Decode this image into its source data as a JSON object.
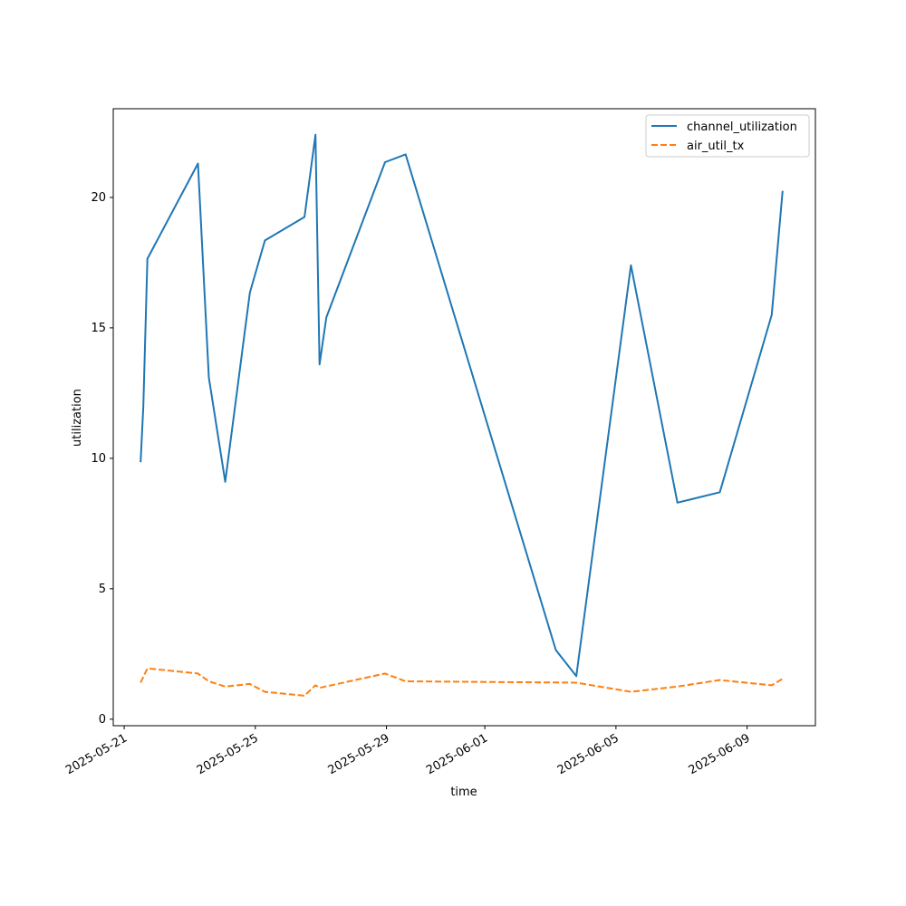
{
  "chart_data": {
    "type": "line",
    "xlabel": "time",
    "ylabel": "utilization",
    "x_axis_kind": "date",
    "xlim": [
      "2025-05-20T16:00",
      "2025-06-11T02:00"
    ],
    "ylim": [
      -0.25,
      23.4
    ],
    "x_ticks": [
      "2025-05-21",
      "2025-05-25",
      "2025-05-29",
      "2025-06-01",
      "2025-06-05",
      "2025-06-09"
    ],
    "y_ticks": [
      0,
      5,
      10,
      15,
      20
    ],
    "grid": false,
    "legend_position": "top-right",
    "series": [
      {
        "name": "channel_utilization",
        "color": "#1f77b4",
        "style": "solid",
        "points": [
          {
            "x": "2025-05-21T12:00",
            "y": 9.85
          },
          {
            "x": "2025-05-21T14:00",
            "y": 12.0
          },
          {
            "x": "2025-05-21T17:00",
            "y": 17.65
          },
          {
            "x": "2025-05-23T06:00",
            "y": 21.3
          },
          {
            "x": "2025-05-23T14:00",
            "y": 13.1
          },
          {
            "x": "2025-05-24T02:00",
            "y": 9.1
          },
          {
            "x": "2025-05-24T20:00",
            "y": 16.35
          },
          {
            "x": "2025-05-25T07:00",
            "y": 18.35
          },
          {
            "x": "2025-05-26T12:00",
            "y": 19.25
          },
          {
            "x": "2025-05-26T20:00",
            "y": 22.4
          },
          {
            "x": "2025-05-26T23:00",
            "y": 13.6
          },
          {
            "x": "2025-05-27T04:00",
            "y": 15.4
          },
          {
            "x": "2025-05-28T23:00",
            "y": 21.35
          },
          {
            "x": "2025-05-29T14:00",
            "y": 21.65
          },
          {
            "x": "2025-06-03T04:00",
            "y": 2.65
          },
          {
            "x": "2025-06-03T19:00",
            "y": 1.65
          },
          {
            "x": "2025-06-05T11:00",
            "y": 17.4
          },
          {
            "x": "2025-06-06T21:00",
            "y": 8.3
          },
          {
            "x": "2025-06-08T04:00",
            "y": 8.7
          },
          {
            "x": "2025-06-09T18:00",
            "y": 15.5
          },
          {
            "x": "2025-06-10T02:00",
            "y": 20.25
          }
        ]
      },
      {
        "name": "air_util_tx",
        "color": "#ff7f0e",
        "style": "dashed",
        "points": [
          {
            "x": "2025-05-21T12:00",
            "y": 1.4
          },
          {
            "x": "2025-05-21T17:00",
            "y": 1.95
          },
          {
            "x": "2025-05-23T06:00",
            "y": 1.75
          },
          {
            "x": "2025-05-23T14:00",
            "y": 1.45
          },
          {
            "x": "2025-05-24T02:00",
            "y": 1.25
          },
          {
            "x": "2025-05-24T20:00",
            "y": 1.35
          },
          {
            "x": "2025-05-25T07:00",
            "y": 1.05
          },
          {
            "x": "2025-05-26T12:00",
            "y": 0.9
          },
          {
            "x": "2025-05-26T20:00",
            "y": 1.3
          },
          {
            "x": "2025-05-26T23:00",
            "y": 1.2
          },
          {
            "x": "2025-05-28T23:00",
            "y": 1.75
          },
          {
            "x": "2025-05-29T14:00",
            "y": 1.45
          },
          {
            "x": "2025-06-03T19:00",
            "y": 1.4
          },
          {
            "x": "2025-06-05T11:00",
            "y": 1.05
          },
          {
            "x": "2025-06-06T21:00",
            "y": 1.25
          },
          {
            "x": "2025-06-08T04:00",
            "y": 1.5
          },
          {
            "x": "2025-06-09T18:00",
            "y": 1.3
          },
          {
            "x": "2025-06-10T02:00",
            "y": 1.55
          }
        ]
      }
    ]
  }
}
